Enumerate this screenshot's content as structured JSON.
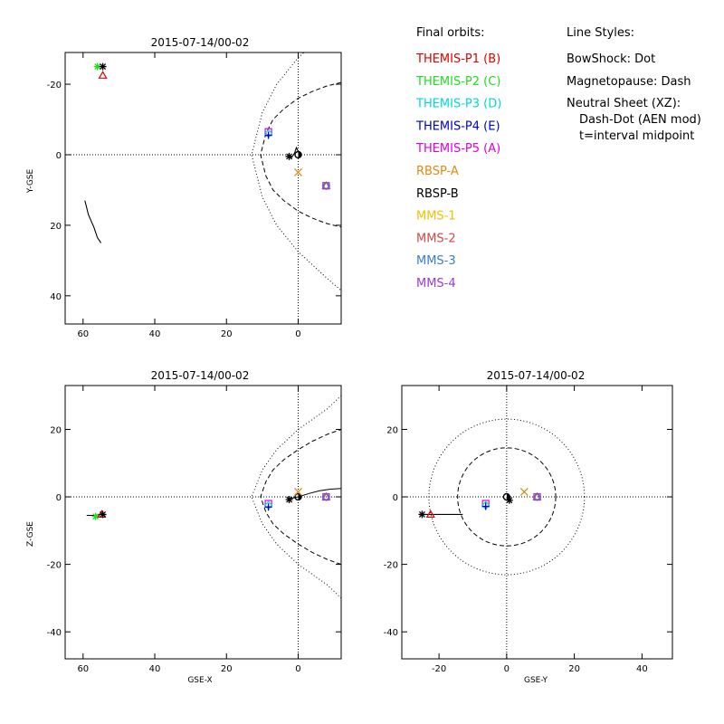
{
  "colors": {
    "THEMIS-P1": "#e00000",
    "THEMIS-P2": "#22dd22",
    "THEMIS-P3": "#00d8d8",
    "THEMIS-P4": "#0000cc",
    "THEMIS-P5": "#e000e0",
    "RBSP-A": "#e08a10",
    "RBSP-B": "#000000",
    "MMS-1": "#f0c000",
    "MMS-2": "#d04848",
    "MMS-3": "#3a7ec8",
    "MMS-4": "#9a3ad8"
  },
  "legend": {
    "orbits_heading": "Final orbits:",
    "orbits": [
      {
        "label": "THEMIS-P1 (B)",
        "key": "THEMIS-P1"
      },
      {
        "label": "THEMIS-P2 (C)",
        "key": "THEMIS-P2"
      },
      {
        "label": "THEMIS-P3 (D)",
        "key": "THEMIS-P3"
      },
      {
        "label": "THEMIS-P4 (E)",
        "key": "THEMIS-P4"
      },
      {
        "label": "THEMIS-P5 (A)",
        "key": "THEMIS-P5"
      },
      {
        "label": "RBSP-A",
        "key": "RBSP-A"
      },
      {
        "label": "RBSP-B",
        "key": "RBSP-B"
      },
      {
        "label": "MMS-1",
        "key": "MMS-1"
      },
      {
        "label": "MMS-2",
        "key": "MMS-2"
      },
      {
        "label": "MMS-3",
        "key": "MMS-3"
      },
      {
        "label": "MMS-4",
        "key": "MMS-4"
      }
    ],
    "styles_heading": "Line Styles:",
    "styles": [
      "BowShock: Dot",
      "Magnetopause: Dash",
      "Neutral Sheet (XZ):",
      "Dash-Dot (AEN mod)",
      "t=interval midpoint"
    ]
  },
  "chart_data": [
    {
      "type": "scatter",
      "title": "2015-07-14/00-02",
      "xlabel": "",
      "ylabel": "Y-GSE",
      "xlim": [
        65,
        -12
      ],
      "ylim": [
        -29,
        48
      ],
      "y_inverted": true,
      "xticks": [
        60,
        40,
        20,
        0
      ],
      "yticks": [
        -20,
        0,
        20,
        40
      ],
      "reference_lines": {
        "x0": true,
        "y0": true
      },
      "bow_shock": {
        "style": "dotted",
        "points": [
          [
            -12,
            -38.5
          ],
          [
            -8,
            -35
          ],
          [
            0,
            -27.5
          ],
          [
            6,
            -20
          ],
          [
            10,
            -12
          ],
          [
            13,
            0
          ],
          [
            10,
            12
          ],
          [
            6,
            20
          ],
          [
            0,
            27.5
          ],
          [
            -8,
            35
          ],
          [
            -12,
            38.5
          ]
        ]
      },
      "magnetopause": {
        "style": "dashed",
        "points": [
          [
            -12,
            -20.5
          ],
          [
            -8,
            -19.5
          ],
          [
            -4,
            -18
          ],
          [
            0,
            -16
          ],
          [
            4,
            -13
          ],
          [
            7,
            -10
          ],
          [
            9,
            -6
          ],
          [
            10.5,
            0
          ],
          [
            9,
            6
          ],
          [
            7,
            10
          ],
          [
            4,
            13
          ],
          [
            0,
            16
          ],
          [
            -4,
            18
          ],
          [
            -8,
            19.5
          ],
          [
            -12,
            20.5
          ]
        ]
      },
      "earth": [
        0,
        0
      ],
      "tracks": [
        {
          "key": "THEMIS-P2",
          "points": [
            [
              59.5,
              13
            ],
            [
              58.5,
              17
            ],
            [
              57,
              20.5
            ],
            [
              56,
              23.5
            ],
            [
              55,
              25
            ]
          ]
        },
        {
          "key": "RBSP-B",
          "points": [
            [
              2,
              1
            ],
            [
              1,
              -0.5
            ],
            [
              0.5,
              -2
            ],
            [
              0,
              -1
            ]
          ]
        }
      ],
      "markers": [
        {
          "key": "THEMIS-P1",
          "symbol": "triangle",
          "x": 54.5,
          "y": -22.5
        },
        {
          "key": "THEMIS-P2",
          "symbol": "asterisk",
          "x": 56,
          "y": -25
        },
        {
          "key": "RBSP-B",
          "symbol": "asterisk",
          "x": 54.5,
          "y": -25
        },
        {
          "key": "THEMIS-P5",
          "symbol": "square",
          "x": 8.3,
          "y": -6.5
        },
        {
          "key": "THEMIS-P3",
          "symbol": "diamond",
          "x": 8.3,
          "y": -6
        },
        {
          "key": "THEMIS-P4",
          "symbol": "plus",
          "x": 8.3,
          "y": -5.5
        },
        {
          "key": "RBSP-B",
          "symbol": "asterisk",
          "x": 2.5,
          "y": 0.5
        },
        {
          "key": "RBSP-B",
          "symbol": "circle",
          "x": 0,
          "y": 0
        },
        {
          "key": "RBSP-A",
          "symbol": "cross",
          "x": 0,
          "y": 5
        },
        {
          "key": "MMS-1",
          "symbol": "square",
          "x": -7.8,
          "y": 8.8
        },
        {
          "key": "MMS-2",
          "symbol": "triangle",
          "x": -7.8,
          "y": 8.8
        },
        {
          "key": "MMS-3",
          "symbol": "diamond",
          "x": -7.8,
          "y": 8.8
        },
        {
          "key": "MMS-4",
          "symbol": "square",
          "x": -7.8,
          "y": 8.8
        }
      ]
    },
    {
      "type": "scatter",
      "title": "2015-07-14/00-02",
      "xlabel": "GSE-X",
      "ylabel": "Z-GSE",
      "xlim": [
        65,
        -12
      ],
      "ylim": [
        -48,
        33
      ],
      "y_inverted": false,
      "xticks": [
        60,
        40,
        20,
        0
      ],
      "yticks": [
        20,
        0,
        -20,
        -40
      ],
      "reference_lines": {
        "x0": true,
        "y0": true
      },
      "bow_shock": {
        "style": "dotted",
        "points": [
          [
            -12,
            -30
          ],
          [
            -8,
            -26
          ],
          [
            0,
            -20
          ],
          [
            6,
            -14
          ],
          [
            10,
            -8
          ],
          [
            13,
            0
          ],
          [
            10,
            8
          ],
          [
            6,
            14
          ],
          [
            0,
            20
          ],
          [
            -8,
            26
          ],
          [
            -12,
            30
          ]
        ]
      },
      "magnetopause": {
        "style": "dashed",
        "points": [
          [
            -12,
            -20
          ],
          [
            -8,
            -18.5
          ],
          [
            -4,
            -16.5
          ],
          [
            0,
            -14
          ],
          [
            4,
            -11
          ],
          [
            7,
            -8
          ],
          [
            9,
            -4.5
          ],
          [
            10.5,
            0
          ],
          [
            9,
            4.5
          ],
          [
            7,
            8
          ],
          [
            4,
            11
          ],
          [
            0,
            14
          ],
          [
            -4,
            16.5
          ],
          [
            -8,
            18.5
          ],
          [
            -12,
            20
          ]
        ]
      },
      "neutral_sheet": {
        "style": "solid",
        "points": [
          [
            0,
            0
          ],
          [
            -3,
            1
          ],
          [
            -6,
            1.8
          ],
          [
            -9,
            2.3
          ],
          [
            -12,
            2.5
          ]
        ]
      },
      "earth": [
        0,
        0
      ],
      "tracks": [
        {
          "key": "THEMIS-P2",
          "points": [
            [
              59,
              -5.5
            ],
            [
              57,
              -5.5
            ],
            [
              55,
              -5.2
            ]
          ]
        },
        {
          "key": "RBSP-B",
          "points": [
            [
              2,
              -0.5
            ],
            [
              0,
              0
            ]
          ]
        }
      ],
      "markers": [
        {
          "key": "THEMIS-P2",
          "symbol": "asterisk",
          "x": 56.5,
          "y": -5.8
        },
        {
          "key": "THEMIS-P1",
          "symbol": "triangle",
          "x": 54.8,
          "y": -5.2
        },
        {
          "key": "RBSP-B",
          "symbol": "asterisk",
          "x": 54.5,
          "y": -5.2
        },
        {
          "key": "THEMIS-P5",
          "symbol": "square",
          "x": 8.3,
          "y": -2
        },
        {
          "key": "THEMIS-P3",
          "symbol": "diamond",
          "x": 8.3,
          "y": -2.5
        },
        {
          "key": "THEMIS-P4",
          "symbol": "plus",
          "x": 8.3,
          "y": -3
        },
        {
          "key": "RBSP-B",
          "symbol": "asterisk",
          "x": 2.5,
          "y": -0.8
        },
        {
          "key": "RBSP-B",
          "symbol": "circle",
          "x": 0,
          "y": 0
        },
        {
          "key": "RBSP-A",
          "symbol": "cross",
          "x": 0,
          "y": 1.5
        },
        {
          "key": "MMS-1",
          "symbol": "square",
          "x": -7.8,
          "y": 0
        },
        {
          "key": "MMS-2",
          "symbol": "triangle",
          "x": -7.8,
          "y": 0
        },
        {
          "key": "MMS-3",
          "symbol": "diamond",
          "x": -7.8,
          "y": 0
        },
        {
          "key": "MMS-4",
          "symbol": "square",
          "x": -7.8,
          "y": 0
        }
      ]
    },
    {
      "type": "scatter",
      "title": "2015-07-14/00-02",
      "xlabel": "GSE-Y",
      "ylabel": "",
      "xlim": [
        -31,
        49
      ],
      "ylim": [
        -48,
        33
      ],
      "y_inverted": false,
      "xticks": [
        -20,
        0,
        20,
        40
      ],
      "yticks": [
        20,
        0,
        -20,
        -40
      ],
      "reference_lines": {
        "x0": true,
        "y0": true
      },
      "bow_shock_circle": {
        "style": "dotted",
        "radius": 23
      },
      "magnetopause_circle": {
        "style": "dashed",
        "radius": 14.5
      },
      "earth": [
        0,
        0
      ],
      "tracks": [
        {
          "key": "RBSP-B",
          "points": [
            [
              -24,
              -5.2
            ],
            [
              -13,
              -5.2
            ]
          ]
        },
        {
          "key": "RBSP-B",
          "points": [
            [
              0,
              0
            ],
            [
              0.7,
              -0.8
            ],
            [
              1,
              -1.5
            ]
          ]
        }
      ],
      "markers": [
        {
          "key": "RBSP-B",
          "symbol": "asterisk",
          "x": -25,
          "y": -5.2
        },
        {
          "key": "THEMIS-P1",
          "symbol": "triangle",
          "x": -22.5,
          "y": -5.2
        },
        {
          "key": "THEMIS-P5",
          "symbol": "square",
          "x": -6.2,
          "y": -2
        },
        {
          "key": "THEMIS-P3",
          "symbol": "diamond",
          "x": -6.2,
          "y": -2.5
        },
        {
          "key": "THEMIS-P4",
          "symbol": "plus",
          "x": -6.2,
          "y": -2.8
        },
        {
          "key": "RBSP-B",
          "symbol": "circle",
          "x": 0,
          "y": 0
        },
        {
          "key": "RBSP-B",
          "symbol": "asterisk",
          "x": 0.8,
          "y": -1
        },
        {
          "key": "RBSP-A",
          "symbol": "cross",
          "x": 5.2,
          "y": 1.5
        },
        {
          "key": "MMS-1",
          "symbol": "square",
          "x": 9,
          "y": 0
        },
        {
          "key": "MMS-2",
          "symbol": "triangle",
          "x": 9,
          "y": 0
        },
        {
          "key": "MMS-3",
          "symbol": "diamond",
          "x": 9,
          "y": 0
        },
        {
          "key": "MMS-4",
          "symbol": "square",
          "x": 9,
          "y": 0
        }
      ]
    }
  ]
}
